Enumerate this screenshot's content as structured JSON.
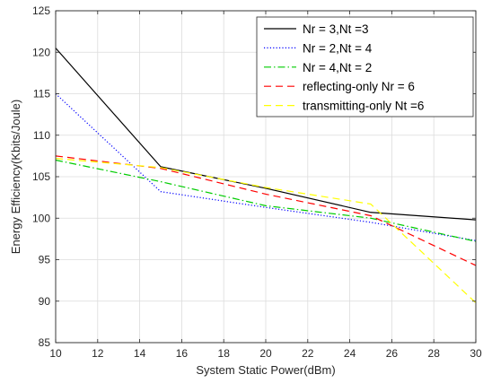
{
  "chart_data": {
    "type": "line",
    "xlabel": "System Static Power(dBm)",
    "ylabel": "Energy Efficiency(Kbits/Joule)",
    "xlim": [
      10,
      30
    ],
    "ylim": [
      85,
      125
    ],
    "xticks": [
      10,
      12,
      14,
      16,
      18,
      20,
      22,
      24,
      26,
      28,
      30
    ],
    "yticks": [
      85,
      90,
      95,
      100,
      105,
      110,
      115,
      120,
      125
    ],
    "grid": true,
    "legend_position": "top-right",
    "series": [
      {
        "name": "Nr = 3,Nt =3",
        "color": "#000000",
        "dash": "solid",
        "x": [
          10,
          15,
          20,
          25,
          30
        ],
        "y": [
          120.5,
          106.2,
          103.6,
          100.7,
          99.8
        ]
      },
      {
        "name": "Nr = 2,Nt = 4",
        "color": "#0000ff",
        "dash": "dotted",
        "x": [
          10,
          15,
          20,
          25,
          30
        ],
        "y": [
          115.0,
          103.2,
          101.3,
          99.5,
          97.3
        ]
      },
      {
        "name": "Nr = 4,Nt = 2",
        "color": "#00cc00",
        "dash": "dashdot",
        "x": [
          10,
          15,
          20,
          25,
          30
        ],
        "y": [
          107.0,
          104.4,
          101.5,
          100.0,
          97.2
        ]
      },
      {
        "name": "reflecting-only Nr = 6",
        "color": "#ff0000",
        "dash": "dashed",
        "x": [
          10,
          15,
          20,
          25,
          30
        ],
        "y": [
          107.5,
          106.0,
          102.9,
          100.3,
          94.3
        ]
      },
      {
        "name": "transmitting-only Nt =6",
        "color": "#ffff00",
        "dash": "dashed",
        "x": [
          10,
          15,
          20,
          25,
          30
        ],
        "y": [
          107.2,
          106.1,
          103.7,
          101.7,
          89.8
        ]
      }
    ]
  }
}
